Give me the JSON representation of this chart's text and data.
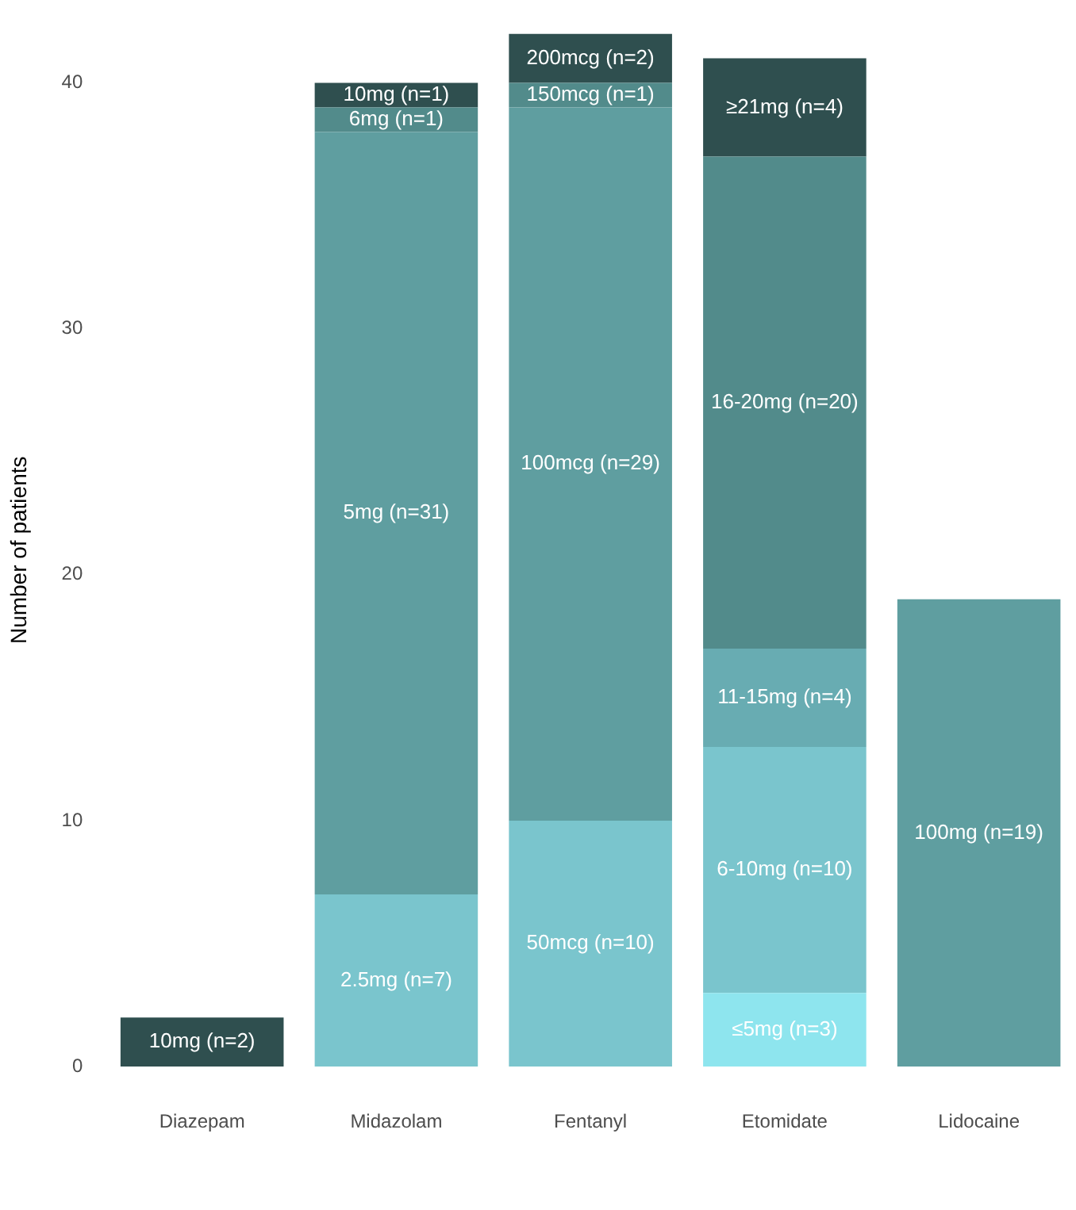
{
  "chart_data": {
    "type": "bar",
    "stacked": true,
    "ylabel": "Number of patients",
    "categories": [
      "Diazepam",
      "Midazolam",
      "Fentanyl",
      "Etomidate",
      "Lidocaine"
    ],
    "ylim": [
      0,
      42
    ],
    "yticks": [
      0,
      10,
      20,
      30,
      40
    ],
    "grid": false,
    "legend": false,
    "series": [
      {
        "colors": [
          "#2f4f4f",
          "#7ac5cd",
          "#7ac5cd",
          "#8ee5ee",
          "#5f9ea0"
        ],
        "values": [
          2,
          7,
          10,
          3,
          19
        ],
        "value_labels": [
          "10mg (n=2)",
          "2.5mg (n=7)",
          "50mcg (n=10)",
          "≤5mg (n=3)",
          "100mg (n=19)"
        ]
      },
      {
        "colors": [
          "#2f4f4f",
          "#5f9ea0",
          "#5f9ea0",
          "#7ac5cd",
          "#5f9ea0"
        ],
        "values": [
          null,
          31,
          29,
          10,
          null
        ],
        "value_labels": [
          null,
          "5mg (n=31)",
          "100mcg (n=29)",
          "6-10mg (n=10)",
          null
        ]
      },
      {
        "colors": [
          "#2f4f4f",
          "#528b8b",
          "#528b8b",
          "#68acb2",
          "#5f9ea0"
        ],
        "values": [
          null,
          1,
          1,
          4,
          null
        ],
        "value_labels": [
          null,
          "6mg (n=1)",
          "150mcg (n=1)",
          "11-15mg (n=4)",
          null
        ]
      },
      {
        "colors": [
          "#2f4f4f",
          "#2f4f4f",
          "#2f4f4f",
          "#528b8b",
          "#5f9ea0"
        ],
        "values": [
          null,
          1,
          2,
          20,
          null
        ],
        "value_labels": [
          null,
          "10mg (n=1)",
          "200mcg (n=2)",
          "16-20mg (n=20)",
          null
        ]
      },
      {
        "colors": [
          "#2f4f4f",
          "#2f4f4f",
          "#2f4f4f",
          "#2f4f4f",
          "#5f9ea0"
        ],
        "values": [
          null,
          null,
          null,
          4,
          null
        ],
        "value_labels": [
          null,
          null,
          null,
          "≥21mg (n=4)",
          null
        ]
      }
    ]
  }
}
